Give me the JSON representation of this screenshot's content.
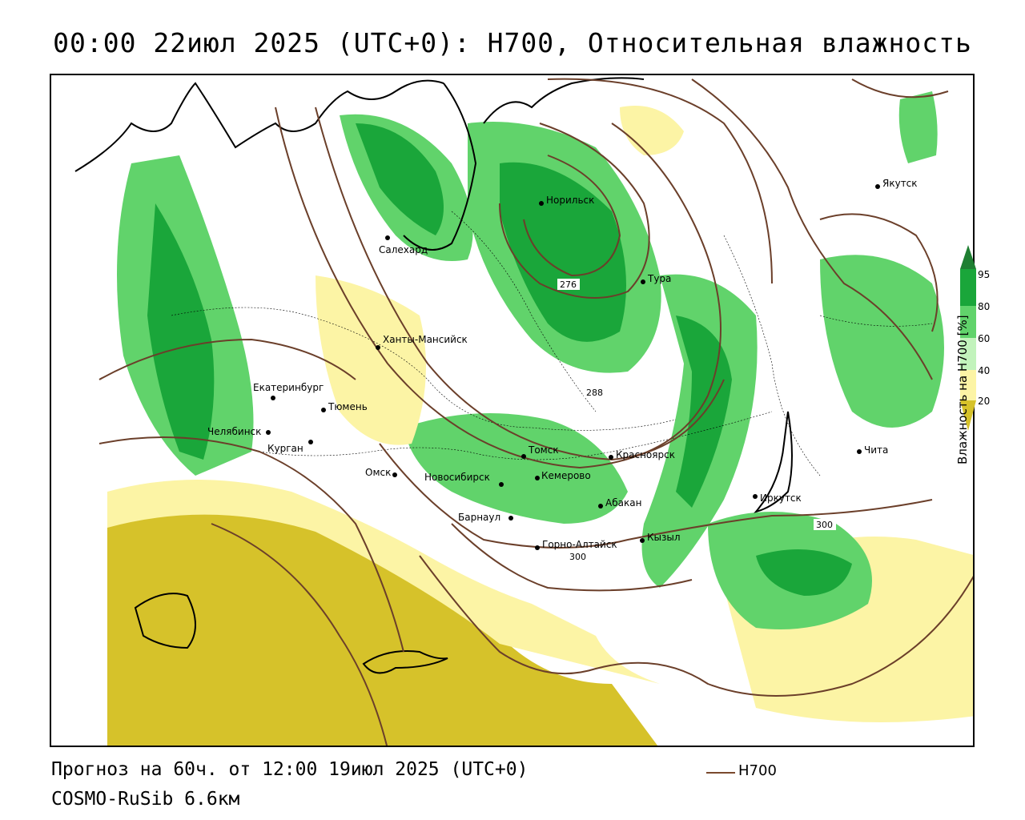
{
  "header": {
    "title": "00:00 22июл 2025 (UTC+0): H700, Относительная влажность"
  },
  "footer": {
    "forecast": "Прогноз на 60ч. от 12:00 19июл 2025 (UTC+0)",
    "model": "COSMO-RuSib 6.6км",
    "contour_legend_label": "H700"
  },
  "colorbar": {
    "title": "Влажность на H700 [%]",
    "ticks": [
      "95",
      "80",
      "60",
      "40",
      "20"
    ],
    "colors": {
      "gt95": "#1f7f32",
      "80_95": "#1aa63a",
      "60_80": "#61d36b",
      "50_60": "#c2f3bc",
      "40_50": "#ffffff",
      "20_40": "#fcf4a5",
      "lt20": "#d6c22a"
    }
  },
  "map": {
    "contour_color": "#6b3f2a",
    "contour_labels": [
      "276",
      "288",
      "300",
      "300"
    ],
    "cities": [
      {
        "name": "Якутск"
      },
      {
        "name": "Норильск"
      },
      {
        "name": "Салехард"
      },
      {
        "name": "Тура"
      },
      {
        "name": "Ханты-Мансийск"
      },
      {
        "name": "Екатеринбург"
      },
      {
        "name": "Тюмень"
      },
      {
        "name": "Челябинск"
      },
      {
        "name": "Курган"
      },
      {
        "name": "Омск"
      },
      {
        "name": "Новосибирск"
      },
      {
        "name": "Томск"
      },
      {
        "name": "Кемерово"
      },
      {
        "name": "Красноярск"
      },
      {
        "name": "Абакан"
      },
      {
        "name": "Барнаул"
      },
      {
        "name": "Горно-Алтайск"
      },
      {
        "name": "Кызыл"
      },
      {
        "name": "Иркутск"
      },
      {
        "name": "Чита"
      }
    ]
  }
}
